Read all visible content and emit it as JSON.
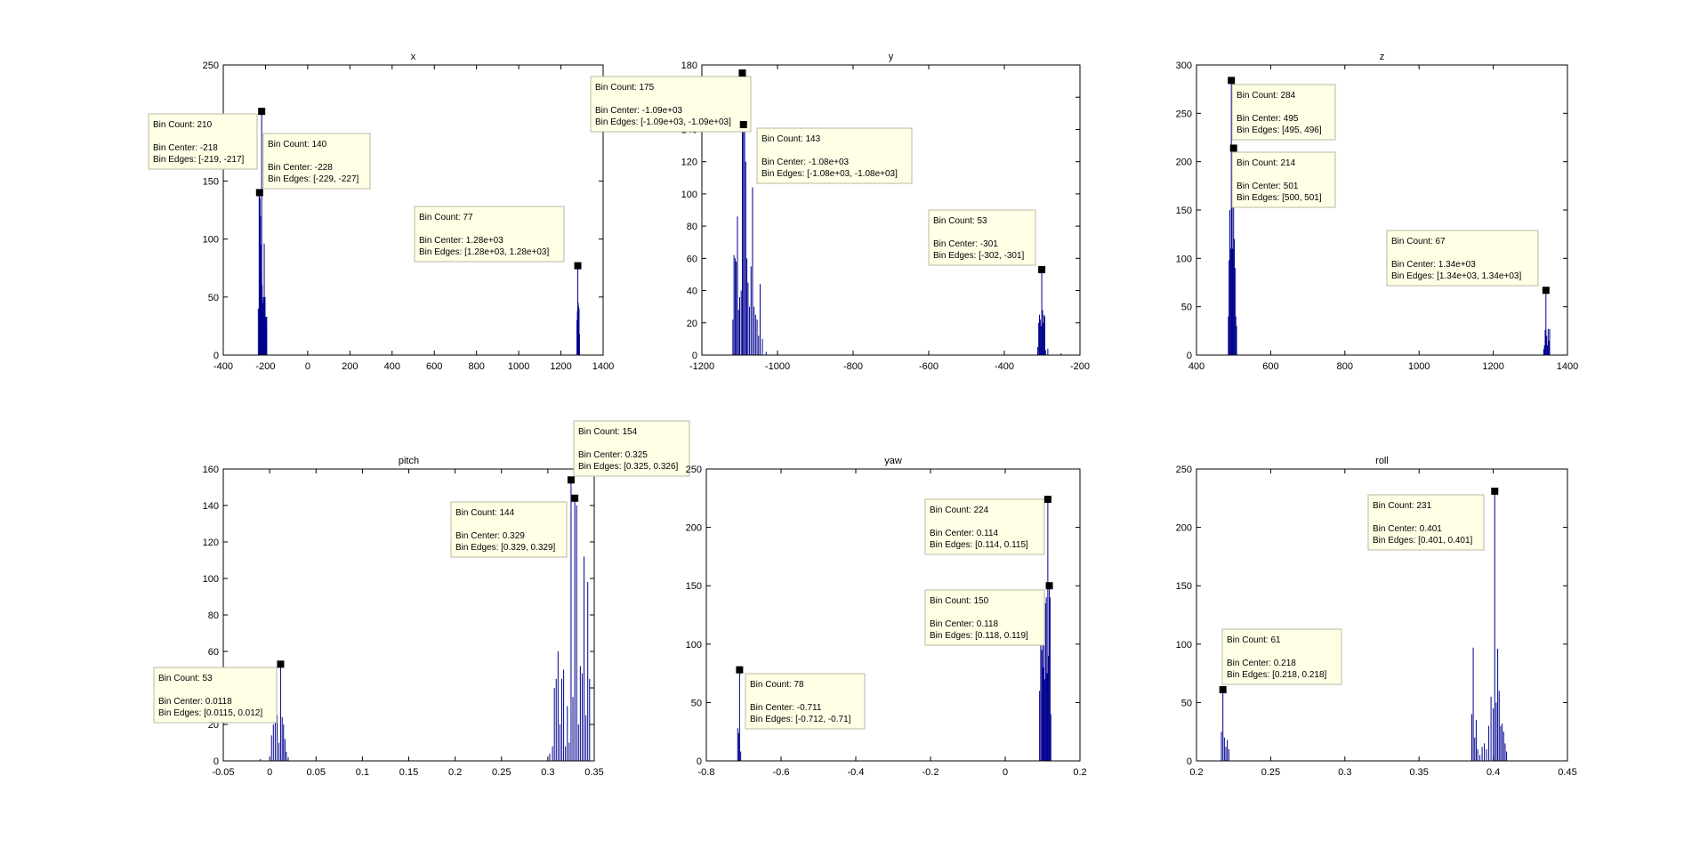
{
  "chart_data": [
    {
      "type": "bar",
      "title": "x",
      "xlim": [
        -400,
        1400
      ],
      "ylim": [
        0,
        250
      ],
      "xticks": [
        -400,
        -200,
        0,
        200,
        400,
        600,
        800,
        1000,
        1200,
        1400
      ],
      "xtick_labels": [
        "-400",
        "-200",
        "0",
        "200",
        "400",
        "600",
        "800",
        "1000",
        "1200",
        "1400"
      ],
      "yticks": [
        0,
        50,
        100,
        150,
        200,
        250
      ],
      "ytick_labels": [
        "0",
        "50",
        "100",
        "150",
        "200",
        "250"
      ],
      "bar_width": 2,
      "bars": [
        [
          -234,
          40
        ],
        [
          -230,
          140
        ],
        [
          -228,
          140
        ],
        [
          -226,
          135
        ],
        [
          -224,
          120
        ],
        [
          -222,
          95
        ],
        [
          -220,
          70
        ],
        [
          -218,
          210
        ],
        [
          -216,
          60
        ],
        [
          -214,
          45
        ],
        [
          -212,
          35
        ],
        [
          -210,
          50
        ],
        [
          -208,
          30
        ],
        [
          -206,
          96
        ],
        [
          -204,
          48
        ],
        [
          -202,
          50
        ],
        [
          -200,
          30
        ],
        [
          -198,
          33
        ],
        [
          -196,
          25
        ],
        [
          -194,
          33
        ],
        [
          1276,
          30
        ],
        [
          1278,
          38
        ],
        [
          1280,
          77
        ],
        [
          1282,
          45
        ],
        [
          1284,
          42
        ],
        [
          1286,
          40
        ],
        [
          1288,
          18
        ]
      ],
      "datatips": [
        {
          "count": "Bin Count: 210",
          "center": "Bin Center: -218",
          "edges": "Bin Edges: [-219, -217]"
        },
        {
          "count": "Bin Count: 140",
          "center": "Bin Center: -228",
          "edges": "Bin Edges: [-229, -227]"
        },
        {
          "count": "Bin Count: 77",
          "center": "Bin Center: 1.28e+03",
          "edges": "Bin Edges: [1.28e+03, 1.28e+03]"
        }
      ]
    },
    {
      "type": "bar",
      "title": "y",
      "xlim": [
        -1200,
        -200
      ],
      "ylim": [
        0,
        180
      ],
      "xticks": [
        -1200,
        -1000,
        -800,
        -600,
        -400,
        -200
      ],
      "xtick_labels": [
        "-1200",
        "-1000",
        "-800",
        "-600",
        "-400",
        "-200"
      ],
      "yticks": [
        0,
        20,
        40,
        60,
        80,
        100,
        120,
        140,
        160,
        180
      ],
      "ytick_labels": [
        "0",
        "20",
        "40",
        "60",
        "80",
        "100",
        "120",
        "140",
        "160",
        "180"
      ],
      "bar_width": 1.6,
      "bars": [
        [
          -1118,
          22
        ],
        [
          -1115,
          62
        ],
        [
          -1112,
          60
        ],
        [
          -1109,
          58
        ],
        [
          -1106,
          86
        ],
        [
          -1103,
          28
        ],
        [
          -1100,
          36
        ],
        [
          -1096,
          40
        ],
        [
          -1093,
          175
        ],
        [
          -1090,
          143
        ],
        [
          -1087,
          143
        ],
        [
          -1084,
          120
        ],
        [
          -1081,
          60
        ],
        [
          -1078,
          45
        ],
        [
          -1074,
          30
        ],
        [
          -1070,
          55
        ],
        [
          -1066,
          104
        ],
        [
          -1062,
          30
        ],
        [
          -1058,
          25
        ],
        [
          -1054,
          22
        ],
        [
          -1050,
          12
        ],
        [
          -1046,
          44
        ],
        [
          -1040,
          10
        ],
        [
          -1030,
          2
        ],
        [
          -312,
          5
        ],
        [
          -309,
          20
        ],
        [
          -307,
          25
        ],
        [
          -305,
          22
        ],
        [
          -303,
          18
        ],
        [
          -301,
          53
        ],
        [
          -299,
          28
        ],
        [
          -297,
          20
        ],
        [
          -295,
          25
        ],
        [
          -293,
          24
        ],
        [
          -291,
          3
        ],
        [
          -285,
          4
        ],
        [
          -250,
          1
        ]
      ],
      "datatips": [
        {
          "count": "Bin Count: 175",
          "center": "Bin Center: -1.09e+03",
          "edges": "Bin Edges: [-1.09e+03, -1.09e+03]"
        },
        {
          "count": "Bin Count: 143",
          "center": "Bin Center: -1.08e+03",
          "edges": "Bin Edges: [-1.08e+03, -1.08e+03]"
        },
        {
          "count": "Bin Count: 53",
          "center": "Bin Center: -301",
          "edges": "Bin Edges: [-302, -301]"
        }
      ]
    },
    {
      "type": "bar",
      "title": "z",
      "xlim": [
        400,
        1400
      ],
      "ylim": [
        0,
        300
      ],
      "xticks": [
        400,
        600,
        800,
        1000,
        1200,
        1400
      ],
      "xtick_labels": [
        "400",
        "600",
        "800",
        "1000",
        "1200",
        "1400"
      ],
      "yticks": [
        0,
        50,
        100,
        150,
        200,
        250,
        300
      ],
      "ytick_labels": [
        "0",
        "50",
        "100",
        "150",
        "200",
        "250",
        "300"
      ],
      "bar_width": 1.2,
      "bars": [
        [
          486,
          40
        ],
        [
          488,
          98
        ],
        [
          490,
          150
        ],
        [
          492,
          110
        ],
        [
          494,
          284
        ],
        [
          496,
          160
        ],
        [
          498,
          110
        ],
        [
          500,
          214
        ],
        [
          502,
          120
        ],
        [
          504,
          90
        ],
        [
          506,
          40
        ],
        [
          508,
          30
        ],
        [
          1336,
          6
        ],
        [
          1338,
          10
        ],
        [
          1340,
          26
        ],
        [
          1342,
          67
        ],
        [
          1344,
          20
        ],
        [
          1346,
          10
        ],
        [
          1348,
          27
        ],
        [
          1350,
          15
        ],
        [
          1352,
          27
        ]
      ],
      "datatips": [
        {
          "count": "Bin Count: 284",
          "center": "Bin Center: 495",
          "edges": "Bin Edges: [495, 496]"
        },
        {
          "count": "Bin Count: 214",
          "center": "Bin Center: 501",
          "edges": "Bin Edges: [500, 501]"
        },
        {
          "count": "Bin Count: 67",
          "center": "Bin Center: 1.34e+03",
          "edges": "Bin Edges: [1.34e+03, 1.34e+03]"
        }
      ]
    },
    {
      "type": "bar",
      "title": "pitch",
      "xlim": [
        -0.05,
        0.35
      ],
      "ylim": [
        0,
        160
      ],
      "xticks": [
        -0.05,
        0,
        0.05,
        0.1,
        0.15,
        0.2,
        0.25,
        0.3,
        0.35
      ],
      "xtick_labels": [
        "-0.05",
        "0",
        "0.05",
        "0.1",
        "0.15",
        "0.2",
        "0.25",
        "0.3",
        "0.35"
      ],
      "yticks": [
        0,
        20,
        40,
        60,
        80,
        100,
        120,
        140,
        160
      ],
      "ytick_labels": [
        "0",
        "20",
        "40",
        "60",
        "80",
        "100",
        "120",
        "140",
        "160"
      ],
      "bar_width": 0.0009,
      "bars": [
        [
          -0.01,
          1
        ],
        [
          0.002,
          14
        ],
        [
          0.004,
          20
        ],
        [
          0.006,
          35
        ],
        [
          0.008,
          25
        ],
        [
          0.01,
          10
        ],
        [
          0.0118,
          53
        ],
        [
          0.0135,
          24
        ],
        [
          0.015,
          20
        ],
        [
          0.0165,
          12
        ],
        [
          0.018,
          5
        ],
        [
          0.02,
          2
        ],
        [
          0.302,
          4
        ],
        [
          0.305,
          8
        ],
        [
          0.307,
          40
        ],
        [
          0.309,
          45
        ],
        [
          0.311,
          60
        ],
        [
          0.313,
          20
        ],
        [
          0.315,
          45
        ],
        [
          0.317,
          50
        ],
        [
          0.319,
          8
        ],
        [
          0.321,
          30
        ],
        [
          0.323,
          10
        ],
        [
          0.325,
          154
        ],
        [
          0.327,
          35
        ],
        [
          0.329,
          144
        ],
        [
          0.331,
          140
        ],
        [
          0.333,
          20
        ],
        [
          0.335,
          52
        ],
        [
          0.337,
          48
        ],
        [
          0.339,
          112
        ],
        [
          0.341,
          25
        ],
        [
          0.343,
          98
        ],
        [
          0.345,
          45
        ]
      ],
      "datatips": [
        {
          "count": "Bin Count: 154",
          "center": "Bin Center: 0.325",
          "edges": "Bin Edges: [0.325, 0.326]"
        },
        {
          "count": "Bin Count: 144",
          "center": "Bin Center: 0.329",
          "edges": "Bin Edges: [0.329, 0.329]"
        },
        {
          "count": "Bin Count: 53",
          "center": "Bin Center: 0.0118",
          "edges": "Bin Edges: [0.0115, 0.012]"
        }
      ]
    },
    {
      "type": "bar",
      "title": "yaw",
      "xlim": [
        -0.8,
        0.2
      ],
      "ylim": [
        0,
        250
      ],
      "xticks": [
        -0.8,
        -0.6,
        -0.4,
        -0.2,
        0,
        0.2
      ],
      "xtick_labels": [
        "-0.8",
        "-0.6",
        "-0.4",
        "-0.2",
        "0",
        "0.2"
      ],
      "yticks": [
        0,
        50,
        100,
        150,
        200,
        250
      ],
      "ytick_labels": [
        "0",
        "50",
        "100",
        "150",
        "200",
        "250"
      ],
      "bar_width": 0.0016,
      "bars": [
        [
          -0.716,
          28
        ],
        [
          -0.713,
          24
        ],
        [
          -0.711,
          78
        ],
        [
          -0.708,
          8
        ],
        [
          0.092,
          60
        ],
        [
          0.095,
          110
        ],
        [
          0.098,
          95
        ],
        [
          0.1,
          125
        ],
        [
          0.102,
          80
        ],
        [
          0.104,
          115
        ],
        [
          0.106,
          70
        ],
        [
          0.108,
          135
        ],
        [
          0.11,
          140
        ],
        [
          0.112,
          75
        ],
        [
          0.114,
          224
        ],
        [
          0.116,
          90
        ],
        [
          0.118,
          150
        ],
        [
          0.12,
          140
        ],
        [
          0.122,
          40
        ]
      ],
      "datatips": [
        {
          "count": "Bin Count: 224",
          "center": "Bin Center: 0.114",
          "edges": "Bin Edges: [0.114, 0.115]"
        },
        {
          "count": "Bin Count: 150",
          "center": "Bin Center: 0.118",
          "edges": "Bin Edges: [0.118, 0.119]"
        },
        {
          "count": "Bin Count: 78",
          "center": "Bin Center: -0.711",
          "edges": "Bin Edges: [-0.712, -0.71]"
        }
      ]
    },
    {
      "type": "bar",
      "title": "roll",
      "xlim": [
        0.2,
        0.45
      ],
      "ylim": [
        0,
        250
      ],
      "xticks": [
        0.2,
        0.25,
        0.3,
        0.35,
        0.4,
        0.45
      ],
      "xtick_labels": [
        "0.2",
        "0.25",
        "0.3",
        "0.35",
        "0.4",
        "0.45"
      ],
      "yticks": [
        0,
        50,
        100,
        150,
        200,
        250
      ],
      "ytick_labels": [
        "0",
        "50",
        "100",
        "150",
        "200",
        "250"
      ],
      "bar_width": 0.0006,
      "bars": [
        [
          0.2168,
          25
        ],
        [
          0.2178,
          61
        ],
        [
          0.2188,
          20
        ],
        [
          0.2198,
          12
        ],
        [
          0.2208,
          18
        ],
        [
          0.2218,
          10
        ],
        [
          0.3855,
          40
        ],
        [
          0.3865,
          97
        ],
        [
          0.3875,
          20
        ],
        [
          0.3885,
          35
        ],
        [
          0.3895,
          10
        ],
        [
          0.391,
          5
        ],
        [
          0.3925,
          12
        ],
        [
          0.394,
          15
        ],
        [
          0.3955,
          10
        ],
        [
          0.397,
          30
        ],
        [
          0.3985,
          55
        ],
        [
          0.4,
          45
        ],
        [
          0.401,
          231
        ],
        [
          0.402,
          50
        ],
        [
          0.403,
          96
        ],
        [
          0.404,
          60
        ],
        [
          0.405,
          30
        ],
        [
          0.406,
          32
        ],
        [
          0.407,
          25
        ],
        [
          0.408,
          15
        ],
        [
          0.409,
          8
        ]
      ],
      "datatips": [
        {
          "count": "Bin Count: 231",
          "center": "Bin Center: 0.401",
          "edges": "Bin Edges: [0.401, 0.401]"
        },
        {
          "count": "Bin Count: 61",
          "center": "Bin Center: 0.218",
          "edges": "Bin Edges: [0.218, 0.218]"
        }
      ]
    }
  ],
  "colors": {
    "bar": "#00008f",
    "datatip_bg": "#ffffe6",
    "datatip_border": "#b9b9a2",
    "marker": "#000000",
    "axis": "#000000"
  }
}
